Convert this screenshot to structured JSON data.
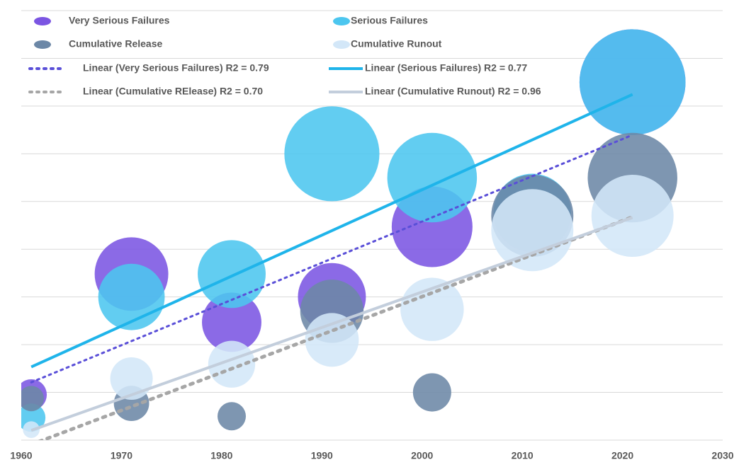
{
  "chart_data": {
    "type": "bubble",
    "x": [
      1961,
      1971,
      1981,
      1991,
      2001,
      2011,
      2021
    ],
    "xlim": [
      1960,
      2030
    ],
    "xticks": [
      1960,
      1970,
      1980,
      1990,
      2000,
      2010,
      2020,
      2030
    ],
    "ylim": [
      0,
      9
    ],
    "yticks": [
      1,
      2,
      3,
      4,
      5,
      6,
      7,
      8,
      9
    ],
    "grid": true,
    "series": [
      {
        "name": "Very Serious Failures",
        "color": "#7b55e2",
        "values": [
          0.95,
          3.48,
          2.47,
          3.0,
          4.47,
          4.75,
          7.5
        ],
        "sizes": [
          4.8,
          27,
          17.6,
          23,
          32.5,
          30,
          56
        ]
      },
      {
        "name": "Serious Failures",
        "color": "#4cc6ef",
        "values": [
          0.47,
          3.0,
          3.48,
          6.0,
          5.5,
          4.77,
          7.5
        ],
        "sizes": [
          4,
          22,
          23,
          45,
          40,
          30,
          56
        ]
      },
      {
        "name": "Cumulative Release",
        "color": "#6c87a6",
        "values": [
          0.87,
          0.77,
          0.5,
          2.7,
          1.0,
          4.7,
          5.5
        ],
        "sizes": [
          3.2,
          6.2,
          4,
          20,
          7.3,
          33.6,
          40
        ]
      },
      {
        "name": "Cumulative Runout",
        "color": "#d3e7f8",
        "values": [
          0.22,
          1.29,
          1.59,
          2.1,
          2.74,
          4.4,
          4.7
        ],
        "sizes": [
          1.4,
          9,
          11,
          14.4,
          20,
          33.6,
          33.6
        ]
      }
    ],
    "trendlines": [
      {
        "name": "Linear (Very Serious Failures) R2 = 0.79",
        "series": 0,
        "color": "#5a4fd8",
        "style": "dotted"
      },
      {
        "name": "Linear (Serious Failures) R2 = 0.77",
        "series": 1,
        "color": "#1fb4ea",
        "style": "solid"
      },
      {
        "name": "Linear (Cumulative RElease) R2 = 0.70",
        "series": 2,
        "color": "#a6a6a6",
        "style": "dotted"
      },
      {
        "name": "Linear (Cumulative Runout) R2 = 0.96",
        "series": 3,
        "color": "#c3cedc",
        "style": "solid"
      }
    ]
  }
}
